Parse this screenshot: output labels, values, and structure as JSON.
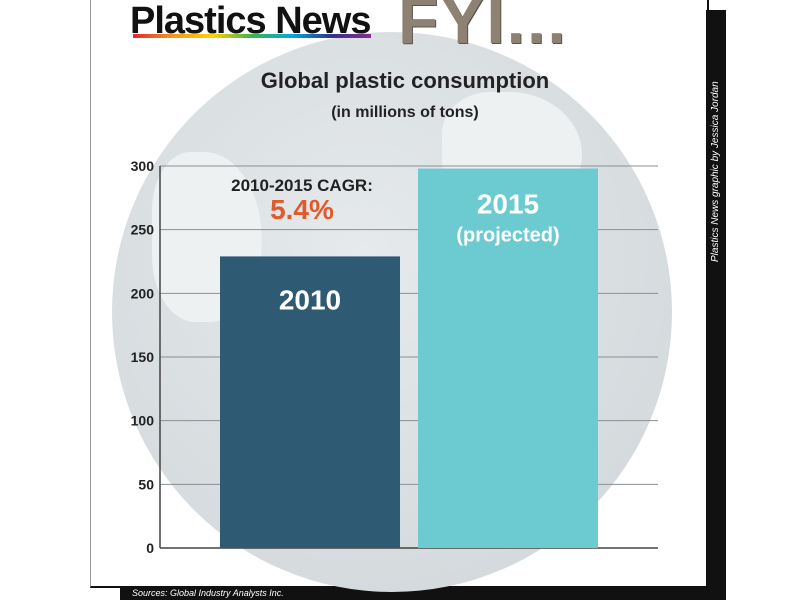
{
  "brand": {
    "publication": "Plastics News",
    "tagline": "FYI..."
  },
  "credit": "Plastics News graphic by Jessica Jordan",
  "sources": "Sources: Global Industry Analysts Inc.",
  "chart_data": {
    "type": "bar",
    "title": "Global plastic consumption",
    "subtitle": "(in millions of tons)",
    "categories": [
      "2010",
      "2015"
    ],
    "category_sublabels": [
      "",
      "(projected)"
    ],
    "values": [
      229,
      298
    ],
    "colors": [
      "#2e5b73",
      "#6ccbd1"
    ],
    "ylim": [
      0,
      300
    ],
    "yticks": [
      0,
      50,
      100,
      150,
      200,
      250,
      300
    ],
    "grid": true,
    "annotation": {
      "label": "2010-2015 CAGR:",
      "value": "5.4%",
      "value_color": "#e05a2b"
    }
  }
}
